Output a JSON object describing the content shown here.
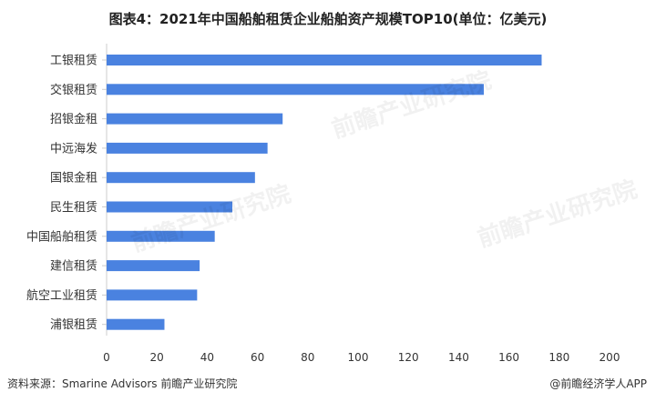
{
  "title": "图表4：2021年中国船舶租赁企业船舶资产规模TOP10(单位：亿美元)",
  "source": "资料来源：Smarine Advisors 前瞻产业研究院",
  "brand": "@前瞻经济学人APP",
  "watermark": "前瞻产业研究院",
  "colors": {
    "bar": "#4a82e0",
    "axis": "#cccccc",
    "text": "#333333"
  },
  "chart_data": {
    "type": "bar",
    "orientation": "horizontal",
    "title": "图表4：2021年中国船舶租赁企业船舶资产规模TOP10(单位：亿美元)",
    "xlabel": "",
    "ylabel": "",
    "xlim": [
      0,
      200
    ],
    "xticks": [
      0,
      20,
      40,
      60,
      80,
      100,
      120,
      140,
      160,
      180,
      200
    ],
    "grid": false,
    "categories": [
      "工银租赁",
      "交银租赁",
      "招银金租",
      "中远海发",
      "国银金租",
      "民生租赁",
      "中国船舶租赁",
      "建信租赁",
      "航空工业租赁",
      "浦银租赁"
    ],
    "values": [
      173,
      150,
      70,
      64,
      59,
      50,
      43,
      37,
      36,
      23
    ]
  }
}
